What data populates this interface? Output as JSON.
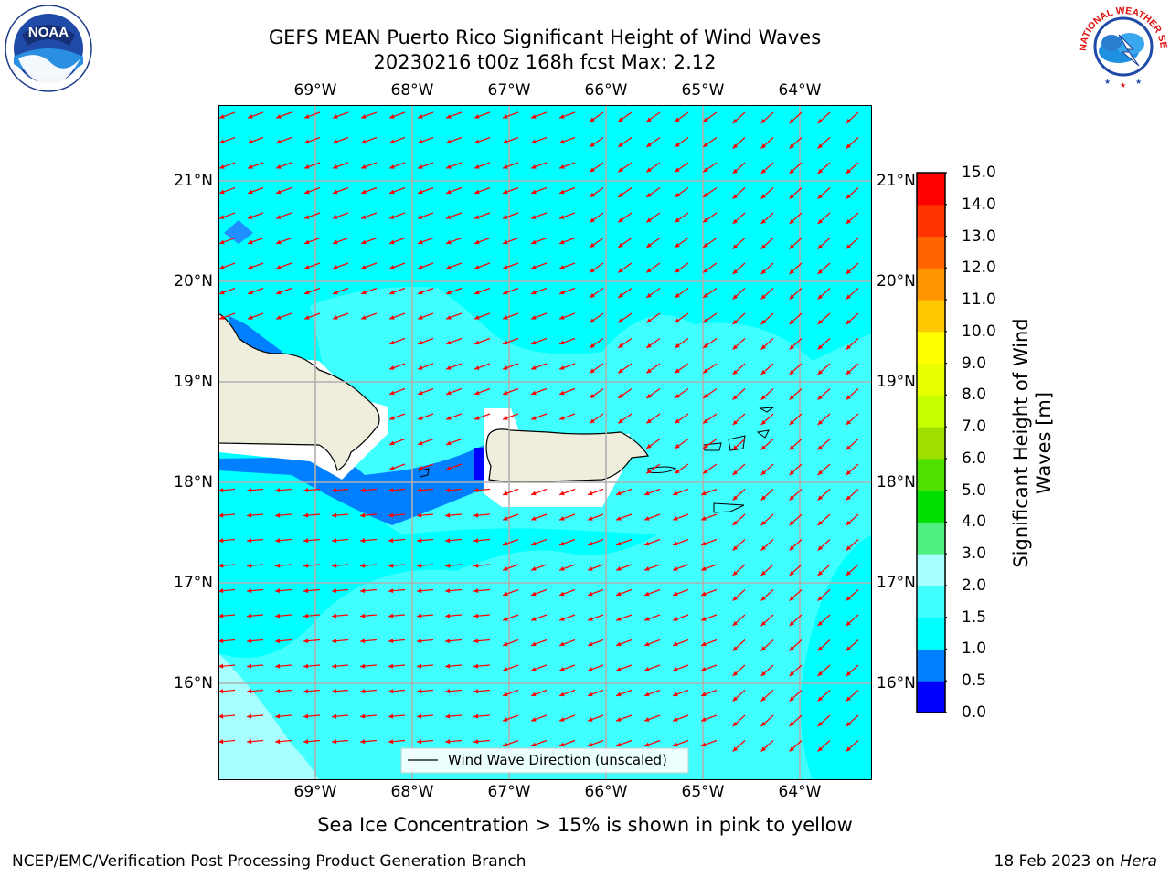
{
  "header": {
    "title_line1": "GEFS MEAN Puerto Rico Significant Height of Wind Waves",
    "title_line2": "20230216 t00z 168h fcst   Max: 2.12",
    "logo_left_text": "NOAA",
    "logo_right_text": "NATIONAL WEATHER SERVICE"
  },
  "map": {
    "lon_labels": [
      "69°W",
      "68°W",
      "67°W",
      "66°W",
      "65°W",
      "64°W"
    ],
    "lat_labels": [
      "21°N",
      "20°N",
      "19°N",
      "18°N",
      "17°N",
      "16°N"
    ],
    "lon_range": [
      -70.0,
      -63.25
    ],
    "lat_range": [
      15.0,
      21.75
    ],
    "legend_label": "Wind Wave Direction (unscaled)",
    "arrow_color": "#ff0000",
    "land_color": "#efeddc",
    "grid": true
  },
  "colorbar": {
    "label": "Significant Height of Wind Waves [m]",
    "tick_labels": [
      "0.0",
      "0.5",
      "1.0",
      "1.5",
      "2.0",
      "3.0",
      "4.0",
      "5.0",
      "6.0",
      "7.0",
      "8.0",
      "9.0",
      "10.0",
      "11.0",
      "12.0",
      "13.0",
      "14.0",
      "15.0"
    ],
    "colors": [
      "#0000ff",
      "#0080ff",
      "#00ffff",
      "#40ffff",
      "#a8ffff",
      "#50f080",
      "#00e000",
      "#50e000",
      "#a0e000",
      "#c8ff00",
      "#e8ff00",
      "#ffff00",
      "#ffc800",
      "#ff9600",
      "#ff6400",
      "#ff3200",
      "#ff0000"
    ]
  },
  "footer": {
    "note": "Sea Ice Concentration > 15% is shown in pink to yellow",
    "left": "NCEP/EMC/Verification Post Processing Product Generation Branch",
    "right_prefix": "18 Feb 2023 on ",
    "right_italic": "Hera"
  }
}
